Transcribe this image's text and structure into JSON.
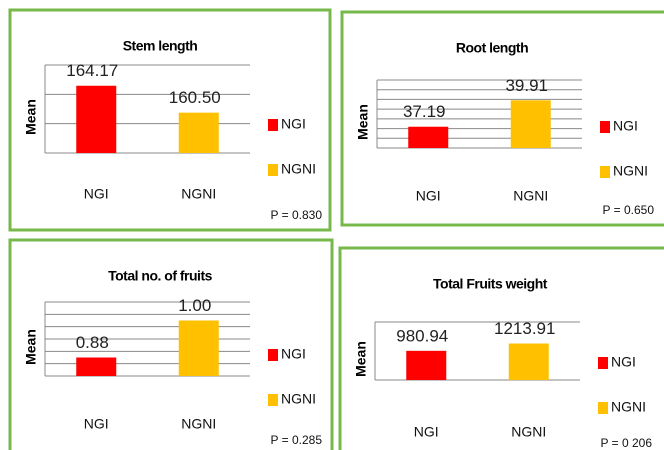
{
  "chart_data": [
    {
      "type": "bar",
      "title": "Stem length",
      "y_label": "Mean",
      "categories": [
        "NGI",
        "NGNI"
      ],
      "values": [
        164.17,
        160.5
      ],
      "value_labels": [
        "164.17",
        "160.50"
      ],
      "colors": [
        "#ff0000",
        "#ffc000"
      ],
      "ylim": [
        155,
        167
      ],
      "yticks": [
        155,
        159,
        163,
        167
      ],
      "grid": true,
      "legend": "right",
      "note": "P = 0.830"
    },
    {
      "type": "bar",
      "title": "Root length",
      "y_label": "Mean",
      "categories": [
        "NGI",
        "NGNI"
      ],
      "values": [
        37.19,
        39.91
      ],
      "value_labels": [
        "37.19",
        "39.91"
      ],
      "colors": [
        "#ff0000",
        "#ffc000"
      ],
      "ylim": [
        35,
        42
      ],
      "yticks": [
        35,
        36,
        37,
        38,
        39,
        40,
        41,
        42
      ],
      "grid": true,
      "legend": "right",
      "note": "P = 0.650"
    },
    {
      "type": "bar",
      "title": "Total no. of fruits",
      "y_label": "Mean",
      "categories": [
        "NGI",
        "NGNI"
      ],
      "values": [
        0.88,
        1
      ],
      "value_labels": [
        "0.88",
        "1.00"
      ],
      "colors": [
        "#ff0000",
        "#ffc000"
      ],
      "ylim": [
        0.82,
        1.06
      ],
      "yticks": [
        0.82,
        0.86,
        0.9,
        0.94,
        0.98,
        1.02,
        1.06
      ],
      "grid": true,
      "legend": "right",
      "note": "P = 0.285"
    },
    {
      "type": "bar",
      "title": "Total Fruits weight",
      "y_label": "Mean",
      "categories": [
        "NGI",
        "NGNI"
      ],
      "values": [
        980.94,
        1213.91
      ],
      "value_labels": [
        "980.94",
        "1213.91"
      ],
      "colors": [
        "#ff0000",
        "#ffc000"
      ],
      "ylim": [
        50,
        1900
      ],
      "yticks": [
        50,
        1900
      ],
      "grid": true,
      "legend": "right",
      "note": "P = 0 206"
    }
  ]
}
